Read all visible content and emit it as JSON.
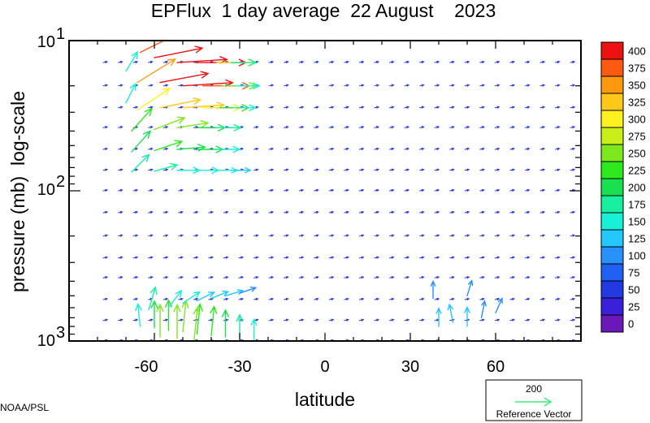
{
  "chart_data": {
    "type": "vector-field",
    "title": "EPFlux  1 day average  22 August    2023",
    "xlabel": "latitude",
    "ylabel": "pressure (mb)  log-scale",
    "xlim": [
      -90,
      90
    ],
    "ylim": [
      1000,
      10
    ],
    "y_scale": "log",
    "x_ticks": [
      "-60",
      "-30",
      "0",
      "30",
      "60"
    ],
    "x_tick_values": [
      -60,
      -30,
      0,
      30,
      60
    ],
    "y_ticks": [
      {
        "base": "10",
        "exp": "1",
        "value": 10
      },
      {
        "base": "10",
        "exp": "2",
        "value": 100
      },
      {
        "base": "10",
        "exp": "3",
        "value": 1000
      }
    ],
    "colorbar": {
      "levels": [
        "400",
        "375",
        "350",
        "325",
        "300",
        "275",
        "250",
        "225",
        "200",
        "175",
        "150",
        "125",
        "100",
        "75",
        "50",
        "25",
        "0"
      ],
      "colors": [
        "#ee1111",
        "#ff5a10",
        "#ff9a10",
        "#ffc818",
        "#fff020",
        "#c8f018",
        "#7ee81e",
        "#2ee81e",
        "#18e050",
        "#18f0a0",
        "#18f0d8",
        "#22c8ff",
        "#2890ff",
        "#2060f0",
        "#2238e0",
        "#3a20d8",
        "#6a18b8"
      ]
    },
    "reference_vector": {
      "magnitude": "200",
      "label": "Reference Vector",
      "color": "#3cf07a"
    },
    "credit": "NOAA/PSL",
    "strong_vectors": [
      {
        "lat": -67,
        "p": 10,
        "u": 1.3,
        "v": 0.9,
        "mag": 360
      },
      {
        "lat": -60,
        "p": 13,
        "u": 1.5,
        "v": 0.3,
        "mag": 400
      },
      {
        "lat": -52,
        "p": 14,
        "u": 1.6,
        "v": 0.1,
        "mag": 410
      },
      {
        "lat": -45,
        "p": 14,
        "u": 1.5,
        "v": 0.0,
        "mag": 400
      },
      {
        "lat": -38,
        "p": 14,
        "u": 1.1,
        "v": 0.0,
        "mag": 300
      },
      {
        "lat": -33,
        "p": 14,
        "u": 0.8,
        "v": 0.0,
        "mag": 180
      },
      {
        "lat": -70,
        "p": 16,
        "u": 0.6,
        "v": 1.0,
        "mag": 160
      },
      {
        "lat": -65,
        "p": 12,
        "u": 1.2,
        "v": 0.6,
        "mag": 380
      },
      {
        "lat": -66,
        "p": 19,
        "u": 1.3,
        "v": 0.8,
        "mag": 360
      },
      {
        "lat": -58,
        "p": 19,
        "u": 1.6,
        "v": 0.3,
        "mag": 400
      },
      {
        "lat": -50,
        "p": 20,
        "u": 1.6,
        "v": 0.1,
        "mag": 410
      },
      {
        "lat": -43,
        "p": 20,
        "u": 1.5,
        "v": 0.0,
        "mag": 380
      },
      {
        "lat": -36,
        "p": 20,
        "u": 1.1,
        "v": 0.0,
        "mag": 260
      },
      {
        "lat": -31,
        "p": 20,
        "u": 0.8,
        "v": 0.0,
        "mag": 160
      },
      {
        "lat": -70,
        "p": 26,
        "u": 0.5,
        "v": 1.0,
        "mag": 150
      },
      {
        "lat": -66,
        "p": 29,
        "u": 1.2,
        "v": 0.8,
        "mag": 310
      },
      {
        "lat": -58,
        "p": 28,
        "u": 1.5,
        "v": 0.3,
        "mag": 330
      },
      {
        "lat": -50,
        "p": 28,
        "u": 1.5,
        "v": 0.1,
        "mag": 330
      },
      {
        "lat": -43,
        "p": 28,
        "u": 1.3,
        "v": 0.0,
        "mag": 300
      },
      {
        "lat": -37,
        "p": 28,
        "u": 1.0,
        "v": 0.0,
        "mag": 220
      },
      {
        "lat": -32,
        "p": 28,
        "u": 0.7,
        "v": 0.0,
        "mag": 150
      },
      {
        "lat": -68,
        "p": 40,
        "u": 0.9,
        "v": 1.0,
        "mag": 230
      },
      {
        "lat": -60,
        "p": 39,
        "u": 1.3,
        "v": 0.5,
        "mag": 250
      },
      {
        "lat": -52,
        "p": 38,
        "u": 1.3,
        "v": 0.2,
        "mag": 240
      },
      {
        "lat": -45,
        "p": 38,
        "u": 1.1,
        "v": 0.0,
        "mag": 210
      },
      {
        "lat": -38,
        "p": 38,
        "u": 0.9,
        "v": 0.0,
        "mag": 170
      },
      {
        "lat": -68,
        "p": 55,
        "u": 0.9,
        "v": 1.0,
        "mag": 210
      },
      {
        "lat": -60,
        "p": 54,
        "u": 1.2,
        "v": 0.4,
        "mag": 220
      },
      {
        "lat": -52,
        "p": 53,
        "u": 1.2,
        "v": 0.1,
        "mag": 210
      },
      {
        "lat": -45,
        "p": 53,
        "u": 1.0,
        "v": 0.0,
        "mag": 190
      },
      {
        "lat": -38,
        "p": 53,
        "u": 0.8,
        "v": 0.0,
        "mag": 160
      },
      {
        "lat": -68,
        "p": 75,
        "u": 0.9,
        "v": 0.9,
        "mag": 180
      },
      {
        "lat": -60,
        "p": 74,
        "u": 1.1,
        "v": 0.3,
        "mag": 170
      },
      {
        "lat": -52,
        "p": 73,
        "u": 1.0,
        "v": 0.0,
        "mag": 160
      },
      {
        "lat": -45,
        "p": 73,
        "u": 0.9,
        "v": 0.0,
        "mag": 150
      },
      {
        "lat": -38,
        "p": 73,
        "u": 0.7,
        "v": 0.0,
        "mag": 140
      },
      {
        "lat": -33,
        "p": 73,
        "u": 0.5,
        "v": 0.0,
        "mag": 130
      },
      {
        "lat": -65,
        "p": 800,
        "u": -0.1,
        "v": 1.0,
        "mag": 160
      },
      {
        "lat": -60,
        "p": 820,
        "u": 0.0,
        "v": 1.0,
        "mag": 200
      },
      {
        "lat": -55,
        "p": 850,
        "u": 0.0,
        "v": 1.0,
        "mag": 230
      },
      {
        "lat": -50,
        "p": 870,
        "u": 0.1,
        "v": 1.0,
        "mag": 240
      },
      {
        "lat": -45,
        "p": 900,
        "u": 0.1,
        "v": 1.0,
        "mag": 230
      },
      {
        "lat": -40,
        "p": 920,
        "u": 0.1,
        "v": 1.0,
        "mag": 220
      },
      {
        "lat": -35,
        "p": 940,
        "u": 0.0,
        "v": 1.0,
        "mag": 200
      },
      {
        "lat": -30,
        "p": 960,
        "u": 0.0,
        "v": 1.0,
        "mag": 170
      },
      {
        "lat": -25,
        "p": 980,
        "u": 0.0,
        "v": 1.0,
        "mag": 140
      },
      {
        "lat": -58,
        "p": 940,
        "u": 0.0,
        "v": 1.0,
        "mag": 250
      },
      {
        "lat": -52,
        "p": 960,
        "u": 0.0,
        "v": 1.0,
        "mag": 260
      },
      {
        "lat": -46,
        "p": 980,
        "u": 0.1,
        "v": 1.0,
        "mag": 250
      },
      {
        "lat": -62,
        "p": 620,
        "u": 0.3,
        "v": 1.0,
        "mag": 170
      },
      {
        "lat": -55,
        "p": 600,
        "u": 0.6,
        "v": 0.8,
        "mag": 150
      },
      {
        "lat": -50,
        "p": 560,
        "u": 0.9,
        "v": 0.6,
        "mag": 140
      },
      {
        "lat": -45,
        "p": 540,
        "u": 1.0,
        "v": 0.5,
        "mag": 130
      },
      {
        "lat": -40,
        "p": 520,
        "u": 1.0,
        "v": 0.4,
        "mag": 120
      },
      {
        "lat": -35,
        "p": 500,
        "u": 1.0,
        "v": 0.3,
        "mag": 120
      },
      {
        "lat": -30,
        "p": 480,
        "u": 0.9,
        "v": 0.3,
        "mag": 110
      },
      {
        "lat": 40,
        "p": 800,
        "u": 0.0,
        "v": 1.0,
        "mag": 120
      },
      {
        "lat": 45,
        "p": 750,
        "u": -0.2,
        "v": 1.0,
        "mag": 120
      },
      {
        "lat": 50,
        "p": 800,
        "u": 0.0,
        "v": 1.0,
        "mag": 130
      },
      {
        "lat": 55,
        "p": 700,
        "u": 0.2,
        "v": 1.0,
        "mag": 110
      },
      {
        "lat": 60,
        "p": 650,
        "u": 0.4,
        "v": 0.9,
        "mag": 100
      },
      {
        "lat": 38,
        "p": 520,
        "u": 0.0,
        "v": 1.0,
        "mag": 110
      },
      {
        "lat": 50,
        "p": 500,
        "u": 0.3,
        "v": 1.0,
        "mag": 100
      }
    ]
  }
}
